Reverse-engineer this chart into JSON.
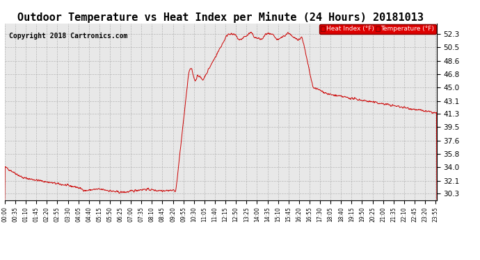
{
  "title": "Outdoor Temperature vs Heat Index per Minute (24 Hours) 20181013",
  "copyright": "Copyright 2018 Cartronics.com",
  "legend_labels": [
    "Heat Index (°F)",
    "Temperature (°F)"
  ],
  "legend_bg_color": "#dd0000",
  "legend_text_color": "#ffffff",
  "line_color": "#cc0000",
  "yticks": [
    30.3,
    32.1,
    34.0,
    35.8,
    37.6,
    39.5,
    41.3,
    43.1,
    45.0,
    46.8,
    48.6,
    50.5,
    52.3
  ],
  "ylim": [
    29.4,
    53.8
  ],
  "background_color": "#ffffff",
  "plot_bg_color": "#e8e8e8",
  "grid_color": "#aaaaaa",
  "title_fontsize": 11,
  "copyright_fontsize": 7,
  "xtick_fontsize": 5.5,
  "ytick_fontsize": 7.5
}
